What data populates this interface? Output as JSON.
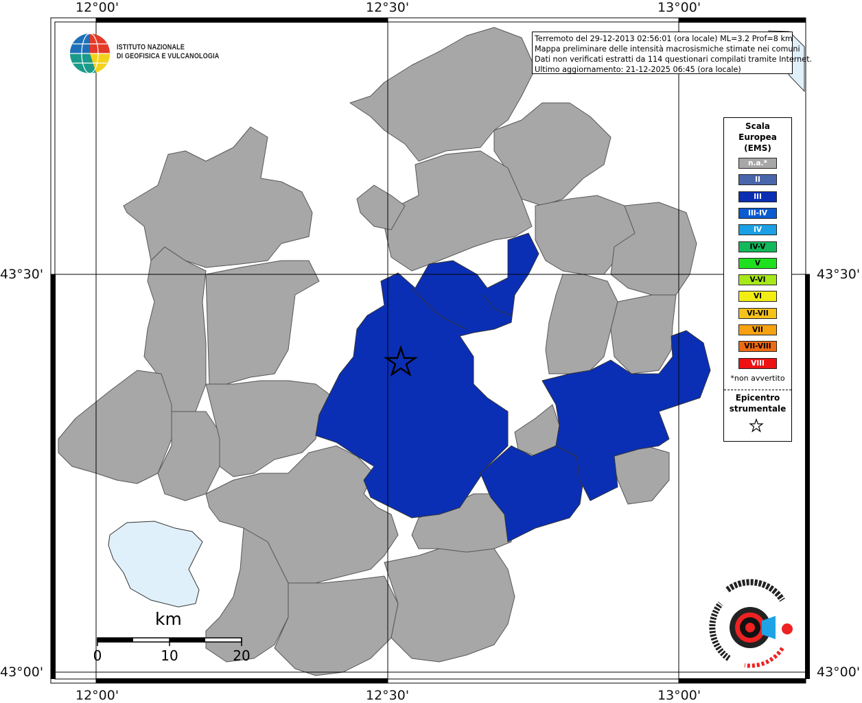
{
  "map": {
    "lon_labels": [
      "12°00'",
      "12°30'",
      "13°00'"
    ],
    "lat_labels": [
      "43°30'",
      "43°00'"
    ],
    "epicenter": {
      "name": "epicenter-star"
    }
  },
  "info": {
    "lines": [
      "Terremoto del 29-12-2013 02:56:01 (ora locale) ML=3.2 Prof=8 km",
      "Mappa preliminare delle intensità macrosismiche stimate nei comuni",
      "Dati non verificati estratti da 114 questionari compilati tramite Internet.",
      "Ultimo aggiornamento: 21-12-2025 06:45 (ora locale)"
    ]
  },
  "logo": {
    "line1": "ISTITUTO NAZIONALE",
    "line2": "DI GEOFISICA E VULCANOLOGIA"
  },
  "legend": {
    "title": "Scala\nEuropea\n(EMS)",
    "items": [
      {
        "label": "n.a.*",
        "color": "#a7a7a7",
        "text": "#ffffff"
      },
      {
        "label": "II",
        "color": "#4a66aa",
        "text": "#ffffff"
      },
      {
        "label": "III",
        "color": "#0a2fb5",
        "text": "#ffffff"
      },
      {
        "label": "III-IV",
        "color": "#0a5ad0",
        "text": "#ffffff"
      },
      {
        "label": "IV",
        "color": "#1ba0e6",
        "text": "#ffffff"
      },
      {
        "label": "IV-V",
        "color": "#12b85a",
        "text": "#000000"
      },
      {
        "label": "V",
        "color": "#1fe01f",
        "text": "#000000"
      },
      {
        "label": "V-VI",
        "color": "#a6e81a",
        "text": "#000000"
      },
      {
        "label": "VI",
        "color": "#f2ee14",
        "text": "#000000"
      },
      {
        "label": "VI-VII",
        "color": "#f4c21a",
        "text": "#000000"
      },
      {
        "label": "VII",
        "color": "#f6a110",
        "text": "#000000"
      },
      {
        "label": "VII-VIII",
        "color": "#f06a12",
        "text": "#000000"
      },
      {
        "label": "VIII",
        "color": "#ee1212",
        "text": "#ffffff"
      }
    ],
    "note": "*non avvertito",
    "epicenter_label": "Epicentro\nstrumentale"
  },
  "scale": {
    "unit": "km",
    "ticks": [
      "0",
      "10",
      "20"
    ]
  },
  "colors": {
    "na": "#a7a7a7",
    "intensity_iii": "#0a2fb5",
    "lake": "#e0f0fb",
    "border": "#555555"
  }
}
